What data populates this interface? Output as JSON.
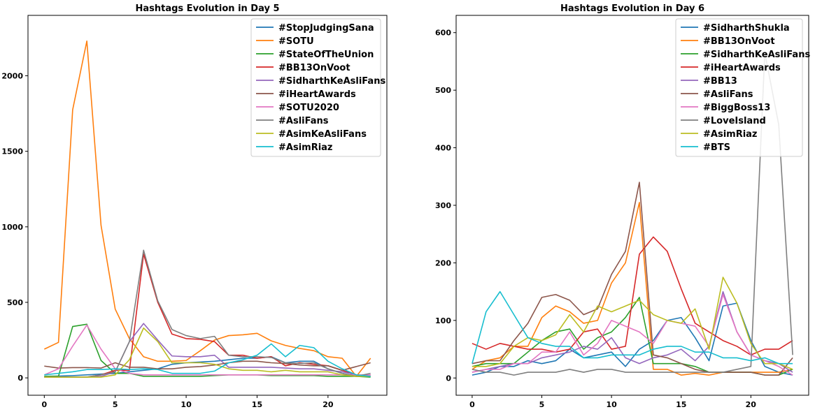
{
  "chart_data": [
    {
      "type": "line",
      "title": "Hashtags Evolution in Day 5",
      "xlabel": "",
      "ylabel": "",
      "xlim": [
        -1.15,
        24.15
      ],
      "ylim": [
        -115,
        2400
      ],
      "xticks": [
        0,
        5,
        10,
        15,
        20
      ],
      "yticks": [
        0,
        500,
        1000,
        1500,
        2000
      ],
      "grid": false,
      "legend_position": "top-right",
      "x": [
        0,
        1,
        2,
        3,
        4,
        5,
        6,
        7,
        8,
        9,
        10,
        11,
        12,
        13,
        14,
        15,
        16,
        17,
        18,
        19,
        20,
        21,
        22,
        23
      ],
      "series": [
        {
          "name": "#StopJudgingSana",
          "color": "#1f77b4",
          "values": [
            10,
            12,
            15,
            20,
            25,
            30,
            40,
            50,
            60,
            90,
            100,
            105,
            110,
            120,
            130,
            130,
            140,
            100,
            110,
            110,
            60,
            30,
            10,
            10
          ]
        },
        {
          "name": "#SOTU",
          "color": "#ff7f0e",
          "values": [
            190,
            235,
            1775,
            2230,
            1010,
            455,
            260,
            140,
            110,
            110,
            115,
            180,
            250,
            280,
            285,
            295,
            245,
            215,
            195,
            180,
            140,
            130,
            10,
            130
          ]
        },
        {
          "name": "#StateOfTheUnion",
          "color": "#2ca02c",
          "values": [
            10,
            10,
            340,
            355,
            115,
            30,
            30,
            10,
            10,
            10,
            10,
            10,
            15,
            20,
            20,
            20,
            15,
            15,
            15,
            15,
            10,
            10,
            10,
            5
          ]
        },
        {
          "name": "#BB13OnVoot",
          "color": "#d62728",
          "values": [
            5,
            5,
            5,
            5,
            20,
            50,
            50,
            820,
            500,
            290,
            260,
            255,
            240,
            150,
            150,
            130,
            140,
            80,
            100,
            90,
            80,
            50,
            20,
            20
          ]
        },
        {
          "name": "#SidharthKeAsliFans",
          "color": "#9467bd",
          "values": [
            5,
            5,
            5,
            5,
            10,
            40,
            240,
            360,
            250,
            145,
            140,
            140,
            150,
            70,
            70,
            70,
            70,
            65,
            60,
            60,
            50,
            40,
            20,
            20
          ]
        },
        {
          "name": "#iHeartAwards",
          "color": "#8c564b",
          "values": [
            78,
            65,
            68,
            68,
            65,
            100,
            70,
            70,
            60,
            60,
            70,
            75,
            85,
            100,
            110,
            110,
            100,
            95,
            85,
            80,
            80,
            50,
            75,
            100
          ]
        },
        {
          "name": "#SOTU2020",
          "color": "#e377c2",
          "values": [
            20,
            60,
            210,
            350,
            190,
            60,
            30,
            20,
            20,
            20,
            20,
            20,
            20,
            20,
            20,
            20,
            20,
            20,
            20,
            20,
            20,
            20,
            20,
            20
          ]
        },
        {
          "name": "#AsliFans",
          "color": "#7f7f7f",
          "values": [
            5,
            5,
            5,
            5,
            20,
            40,
            240,
            845,
            510,
            320,
            280,
            260,
            275,
            150,
            140,
            140,
            135,
            100,
            95,
            100,
            60,
            30,
            10,
            30
          ]
        },
        {
          "name": "#AsimKeAsliFans",
          "color": "#bcbd22",
          "values": [
            5,
            5,
            5,
            5,
            5,
            20,
            120,
            330,
            240,
            100,
            100,
            100,
            90,
            60,
            50,
            50,
            40,
            50,
            40,
            40,
            40,
            20,
            10,
            10
          ]
        },
        {
          "name": "#AsimRiaz",
          "color": "#17becf",
          "values": [
            20,
            30,
            40,
            55,
            55,
            60,
            55,
            60,
            55,
            30,
            30,
            30,
            45,
            100,
            120,
            150,
            225,
            140,
            215,
            200,
            110,
            60,
            20,
            10
          ]
        }
      ]
    },
    {
      "type": "line",
      "title": "Hashtags Evolution in Day 6",
      "xlabel": "",
      "ylabel": "",
      "xlim": [
        -1.15,
        24.15
      ],
      "ylim": [
        -30,
        630
      ],
      "xticks": [
        0,
        5,
        10,
        15,
        20
      ],
      "yticks": [
        0,
        100,
        200,
        300,
        400,
        500,
        600
      ],
      "grid": false,
      "legend_position": "top-right",
      "x": [
        0,
        1,
        2,
        3,
        4,
        5,
        6,
        7,
        8,
        9,
        10,
        11,
        12,
        13,
        14,
        15,
        16,
        17,
        18,
        19,
        20,
        21,
        22,
        23
      ],
      "series": [
        {
          "name": "#SidharthShukla",
          "color": "#1f77b4",
          "values": [
            5,
            10,
            20,
            20,
            30,
            25,
            30,
            50,
            35,
            40,
            45,
            20,
            50,
            65,
            100,
            105,
            70,
            30,
            125,
            130,
            65,
            20,
            10,
            5
          ]
        },
        {
          "name": "#BB13OnVoot",
          "color": "#ff7f0e",
          "values": [
            15,
            30,
            35,
            55,
            55,
            105,
            125,
            115,
            95,
            100,
            165,
            200,
            305,
            15,
            15,
            5,
            8,
            5,
            10,
            10,
            10,
            10,
            10,
            15
          ]
        },
        {
          "name": "#SidharthKeAsliFans",
          "color": "#2ca02c",
          "values": [
            20,
            25,
            25,
            25,
            45,
            65,
            80,
            85,
            50,
            70,
            80,
            105,
            140,
            25,
            25,
            25,
            20,
            10,
            10,
            10,
            10,
            5,
            5,
            15
          ]
        },
        {
          "name": "#iHeartAwards",
          "color": "#d62728",
          "values": [
            60,
            50,
            60,
            55,
            50,
            50,
            45,
            50,
            80,
            85,
            50,
            55,
            215,
            245,
            220,
            155,
            95,
            80,
            65,
            55,
            40,
            50,
            50,
            65
          ]
        },
        {
          "name": "#BB13",
          "color": "#9467bd",
          "values": [
            10,
            15,
            20,
            25,
            25,
            35,
            40,
            45,
            55,
            50,
            70,
            35,
            25,
            35,
            40,
            50,
            30,
            55,
            150,
            80,
            40,
            30,
            25,
            10
          ]
        },
        {
          "name": "#AsliFans",
          "color": "#8c564b",
          "values": [
            25,
            30,
            30,
            65,
            95,
            140,
            145,
            135,
            110,
            120,
            180,
            220,
            340,
            40,
            35,
            25,
            15,
            10,
            10,
            10,
            10,
            5,
            5,
            35
          ]
        },
        {
          "name": "#BiggBoss13",
          "color": "#e377c2",
          "values": [
            10,
            15,
            15,
            25,
            25,
            45,
            45,
            80,
            40,
            60,
            100,
            90,
            80,
            60,
            100,
            95,
            90,
            55,
            145,
            80,
            40,
            30,
            20,
            5
          ]
        },
        {
          "name": "#LoveIsland",
          "color": "#7f7f7f",
          "values": [
            15,
            10,
            10,
            5,
            10,
            10,
            10,
            15,
            10,
            15,
            15,
            10,
            10,
            10,
            10,
            10,
            10,
            10,
            10,
            15,
            20,
            565,
            440,
            40
          ]
        },
        {
          "name": "#AsimRiaz",
          "color": "#bcbd22",
          "values": [
            20,
            20,
            25,
            55,
            70,
            65,
            75,
            110,
            80,
            125,
            115,
            125,
            135,
            110,
            100,
            95,
            120,
            50,
            175,
            130,
            60,
            25,
            25,
            15
          ]
        },
        {
          "name": "#BTS",
          "color": "#17becf",
          "values": [
            25,
            115,
            150,
            110,
            70,
            60,
            55,
            55,
            35,
            35,
            40,
            40,
            40,
            50,
            55,
            55,
            45,
            45,
            35,
            35,
            30,
            35,
            25,
            25
          ]
        }
      ]
    }
  ]
}
